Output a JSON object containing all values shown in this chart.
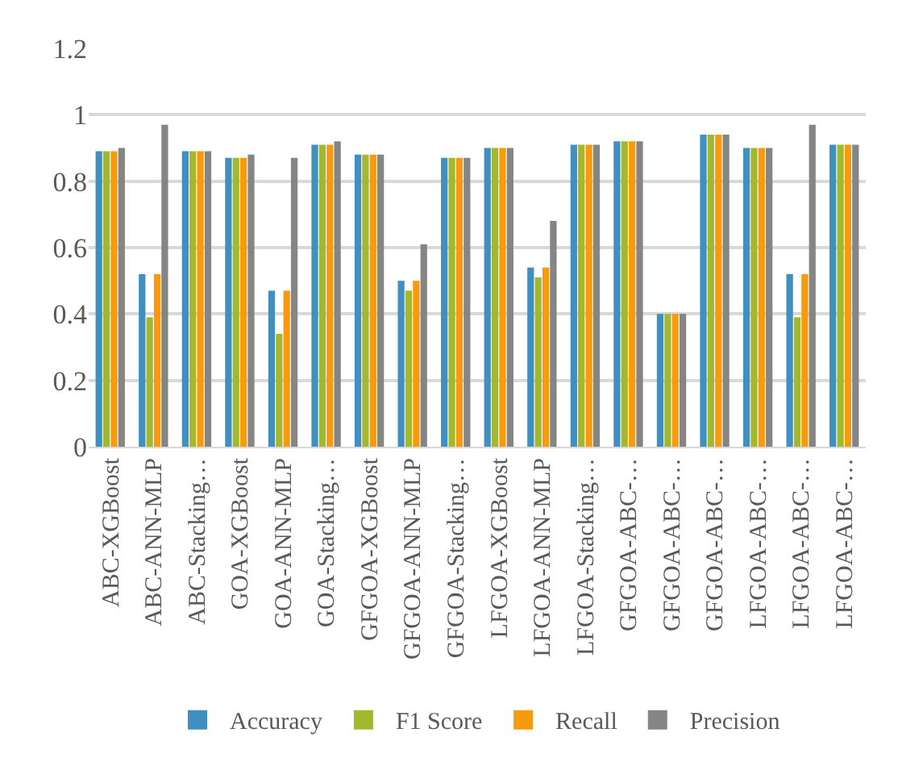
{
  "chart_data": {
    "type": "bar",
    "categories": [
      "ABC-XGBoost",
      "ABC-ANN-MLP",
      "ABC-Stacking…",
      "GOA-XGBoost",
      "GOA-ANN-MLP",
      "GOA-Stacking…",
      "GFGOA-XGBoost",
      "GFGOA-ANN-MLP",
      "GFGOA-Stacking…",
      "LFGOA-XGBoost",
      "LFGOA-ANN-MLP",
      "LFGOA-Stacking…",
      "GFGOA-ABC-…",
      "GFGOA-ABC-…",
      "GFGOA-ABC-…",
      "LFGOA-ABC-…",
      "LFGOA-ABC-…",
      "LFGOA-ABC-…"
    ],
    "series": [
      {
        "name": "Accuracy",
        "color": "#3f8fc0",
        "values": [
          0.89,
          0.52,
          0.89,
          0.87,
          0.47,
          0.91,
          0.88,
          0.5,
          0.87,
          0.9,
          0.54,
          0.91,
          0.92,
          0.4,
          0.94,
          0.9,
          0.52,
          0.91
        ]
      },
      {
        "name": "F1 Score",
        "color": "#a3b82c",
        "values": [
          0.89,
          0.39,
          0.89,
          0.87,
          0.34,
          0.91,
          0.88,
          0.47,
          0.87,
          0.9,
          0.51,
          0.91,
          0.92,
          0.4,
          0.94,
          0.9,
          0.39,
          0.91
        ]
      },
      {
        "name": "Recall",
        "color": "#f89a0e",
        "values": [
          0.89,
          0.52,
          0.89,
          0.87,
          0.47,
          0.91,
          0.88,
          0.5,
          0.87,
          0.9,
          0.54,
          0.91,
          0.92,
          0.4,
          0.94,
          0.9,
          0.52,
          0.91
        ]
      },
      {
        "name": "Precision",
        "color": "#858585",
        "values": [
          0.9,
          0.97,
          0.89,
          0.88,
          0.87,
          0.92,
          0.88,
          0.61,
          0.87,
          0.9,
          0.68,
          0.91,
          0.92,
          0.4,
          0.94,
          0.9,
          0.97,
          0.91
        ]
      }
    ],
    "ylim": [
      0,
      1.2
    ],
    "yticks": [
      0,
      0.2,
      0.4,
      0.6,
      0.8,
      1,
      1.2
    ],
    "grid": "y",
    "legend": "bottom"
  }
}
